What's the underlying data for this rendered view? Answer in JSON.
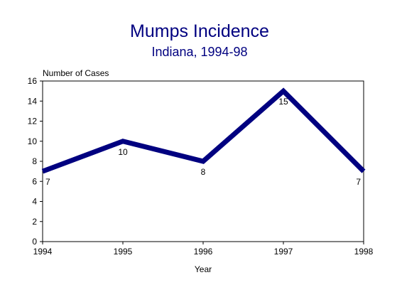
{
  "chart_data": {
    "type": "line",
    "title": "Mumps Incidence",
    "subtitle": "Indiana, 1994-98",
    "xlabel": "Year",
    "ylabel": "Number of Cases",
    "x": [
      1994,
      1995,
      1996,
      1997,
      1998
    ],
    "series": [
      {
        "values": [
          7,
          10,
          8,
          15,
          7
        ]
      }
    ],
    "data_labels": [
      "7",
      "10",
      "8",
      "15",
      "7"
    ],
    "xlim": [
      1994,
      1998
    ],
    "ylim": [
      0,
      16
    ],
    "yticks": [
      0,
      2,
      4,
      6,
      8,
      10,
      12,
      14,
      16
    ],
    "xticks": [
      "1994",
      "1995",
      "1996",
      "1997",
      "1998"
    ],
    "grid": false,
    "line_color": "#000080",
    "title_color": "#000080"
  }
}
